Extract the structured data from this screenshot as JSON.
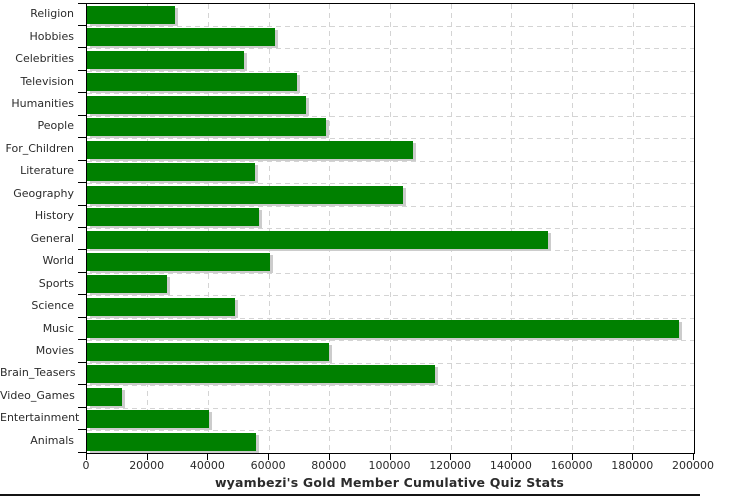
{
  "chart_data": {
    "type": "bar",
    "orientation": "horizontal",
    "title": "wyambezi's Gold Member Cumulative Quiz Stats",
    "categories": [
      "Religion",
      "Hobbies",
      "Celebrities",
      "Television",
      "Humanities",
      "People",
      "For_Children",
      "Literature",
      "Geography",
      "History",
      "General",
      "World",
      "Sports",
      "Science",
      "Music",
      "Movies",
      "Brain_Teasers",
      "Video_Games",
      "Entertainment",
      "Animals"
    ],
    "values": [
      28900,
      61800,
      51700,
      69300,
      72000,
      78600,
      107500,
      55200,
      104000,
      56700,
      152000,
      60200,
      26200,
      48900,
      195000,
      79900,
      114500,
      11400,
      40100,
      55700
    ],
    "xlim": [
      0,
      200000
    ],
    "xticks": [
      0,
      20000,
      40000,
      60000,
      80000,
      100000,
      120000,
      140000,
      160000,
      180000,
      200000
    ],
    "xlabel": "",
    "ylabel": "",
    "grid": "dashed",
    "legend": "none"
  },
  "colors": {
    "bar": "#008000",
    "bar_shadow": "#cccccc",
    "grid": "#d4d4d4",
    "axis": "#000000",
    "text": "#2b2b2b",
    "rule": "#141414",
    "background": "#ffffff"
  }
}
